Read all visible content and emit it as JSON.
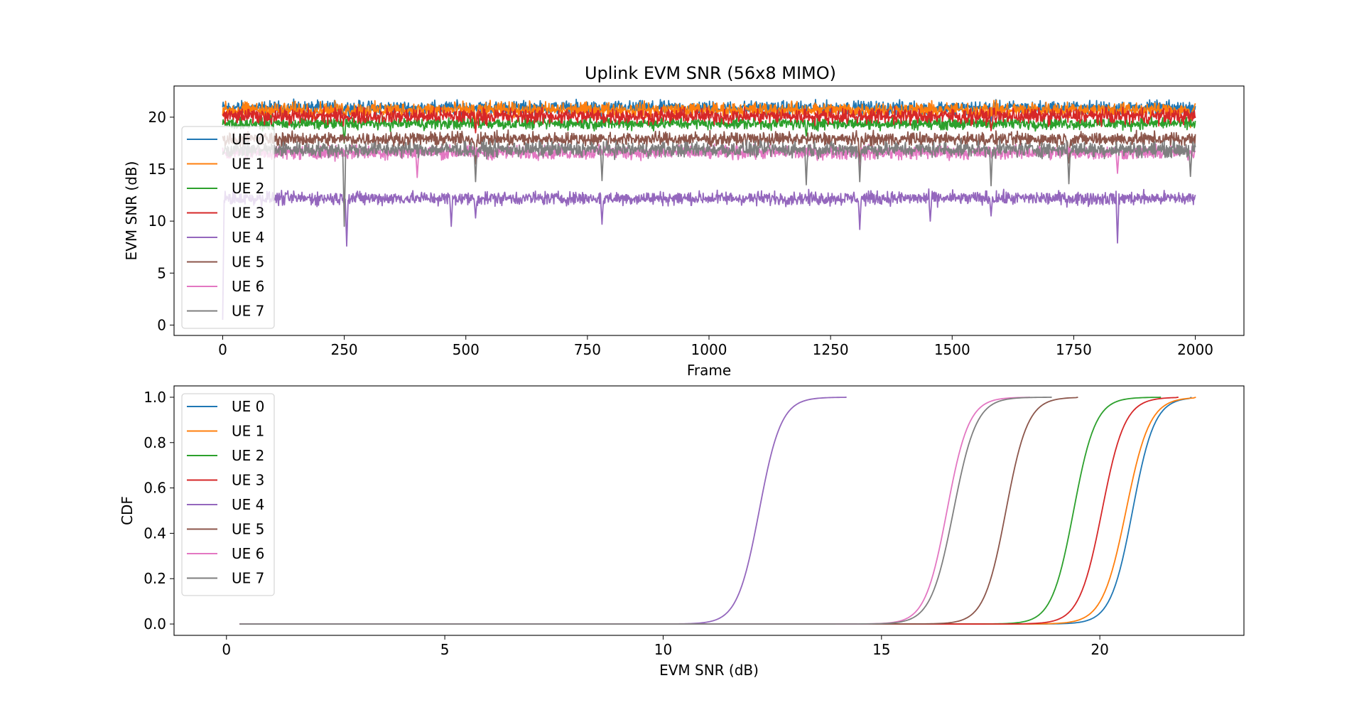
{
  "figure": {
    "title": "Uplink EVM SNR (56x8 MIMO)"
  },
  "colors": {
    "UE 0": "#1f77b4",
    "UE 1": "#ff7f0e",
    "UE 2": "#2ca02c",
    "UE 3": "#d62728",
    "UE 4": "#9467bd",
    "UE 5": "#8c564b",
    "UE 6": "#e377c2",
    "UE 7": "#7f7f7f"
  },
  "chart_data": [
    {
      "type": "line",
      "title": "Uplink EVM SNR (56x8 MIMO)",
      "xlabel": "Frame",
      "ylabel": "EVM SNR (dB)",
      "xlim": [
        -100,
        2100
      ],
      "ylim": [
        -1,
        23
      ],
      "xticks": [
        0,
        250,
        500,
        750,
        1000,
        1250,
        1500,
        1750,
        2000
      ],
      "xtick_labels": [
        "0",
        "250",
        "500",
        "750",
        "1000",
        "1250",
        "1500",
        "1750",
        "2000"
      ],
      "yticks": [
        0,
        5,
        10,
        15,
        20
      ],
      "ytick_labels": [
        "0",
        "5",
        "10",
        "15",
        "20"
      ],
      "grid": false,
      "legend_position": "center-left",
      "frames": 2000,
      "series": [
        {
          "name": "UE 0",
          "mean": 20.9,
          "spread": 0.45,
          "dips": [
            [
              780,
              19.0
            ],
            [
              1580,
              19.6
            ]
          ]
        },
        {
          "name": "UE 1",
          "mean": 20.7,
          "spread": 0.5,
          "dips": [
            [
              520,
              19.2
            ],
            [
              1990,
              19.0
            ]
          ]
        },
        {
          "name": "UE 2",
          "mean": 19.4,
          "spread": 0.4,
          "dips": [
            [
              250,
              17.5
            ],
            [
              1200,
              18.2
            ]
          ]
        },
        {
          "name": "UE 3",
          "mean": 20.1,
          "spread": 0.5,
          "dips": [
            [
              520,
              18.5
            ],
            [
              1580,
              18.7
            ]
          ]
        },
        {
          "name": "UE 4",
          "mean": 12.2,
          "spread": 0.45,
          "dips": [
            [
              0,
              0.5
            ],
            [
              255,
              7.6
            ],
            [
              470,
              9.5
            ],
            [
              520,
              10.3
            ],
            [
              780,
              9.7
            ],
            [
              1310,
              9.2
            ],
            [
              1455,
              10.0
            ],
            [
              1580,
              10.5
            ],
            [
              1840,
              7.9
            ]
          ]
        },
        {
          "name": "UE 5",
          "mean": 17.9,
          "spread": 0.45,
          "dips": [
            [
              520,
              15.5
            ],
            [
              1310,
              15.2
            ],
            [
              1740,
              15.6
            ]
          ]
        },
        {
          "name": "UE 6",
          "mean": 16.6,
          "spread": 0.45,
          "dips": [
            [
              400,
              14.2
            ],
            [
              1310,
              14.8
            ],
            [
              1840,
              14.6
            ]
          ]
        },
        {
          "name": "UE 7",
          "mean": 16.9,
          "spread": 0.5,
          "dips": [
            [
              250,
              9.5
            ],
            [
              520,
              13.8
            ],
            [
              780,
              13.9
            ],
            [
              1200,
              13.5
            ],
            [
              1310,
              13.8
            ],
            [
              1580,
              13.4
            ],
            [
              1740,
              13.6
            ],
            [
              1990,
              14.3
            ]
          ]
        }
      ]
    },
    {
      "type": "line",
      "title": "",
      "xlabel": "EVM SNR (dB)",
      "ylabel": "CDF",
      "xlim": [
        -1.2,
        23.3
      ],
      "ylim": [
        -0.05,
        1.05
      ],
      "xticks": [
        0,
        5,
        10,
        15,
        20
      ],
      "xtick_labels": [
        "0",
        "5",
        "10",
        "15",
        "20"
      ],
      "yticks": [
        0.0,
        0.2,
        0.4,
        0.6,
        0.8,
        1.0
      ],
      "ytick_labels": [
        "0.0",
        "0.2",
        "0.4",
        "0.6",
        "0.8",
        "1.0"
      ],
      "grid": false,
      "legend_position": "upper-left",
      "x_start": 0.3,
      "series": [
        {
          "name": "UE 0",
          "median": 20.75,
          "scale": 0.25,
          "x_max": 22.1
        },
        {
          "name": "UE 1",
          "median": 20.6,
          "scale": 0.27,
          "x_max": 22.2
        },
        {
          "name": "UE 2",
          "median": 19.4,
          "scale": 0.25,
          "x_max": 21.4
        },
        {
          "name": "UE 3",
          "median": 20.05,
          "scale": 0.26,
          "x_max": 21.8
        },
        {
          "name": "UE 4",
          "median": 12.2,
          "scale": 0.25,
          "x_max": 14.2
        },
        {
          "name": "UE 5",
          "median": 17.85,
          "scale": 0.25,
          "x_max": 19.5
        },
        {
          "name": "UE 6",
          "median": 16.5,
          "scale": 0.25,
          "x_max": 18.4
        },
        {
          "name": "UE 7",
          "median": 16.65,
          "scale": 0.26,
          "x_max": 18.9
        }
      ]
    }
  ]
}
